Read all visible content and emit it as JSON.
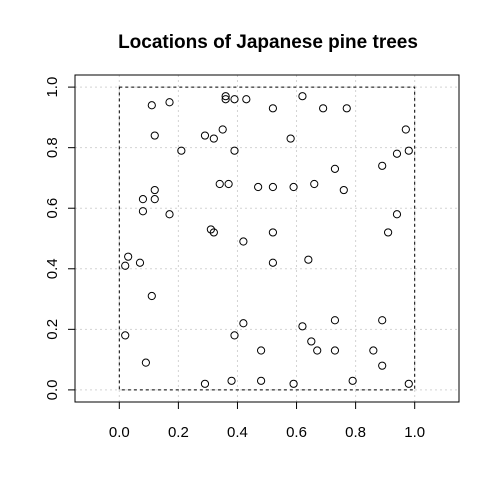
{
  "chart_data": {
    "type": "scatter",
    "title": "Locations of Japanese pine trees",
    "xlabel": "",
    "ylabel": "",
    "xlim": [
      -0.15,
      1.15
    ],
    "ylim": [
      -0.04,
      1.04
    ],
    "x_ticks": [
      "0.0",
      "0.2",
      "0.4",
      "0.6",
      "0.8",
      "1.0"
    ],
    "y_ticks": [
      "0.0",
      "0.2",
      "0.4",
      "0.6",
      "0.8",
      "1.0"
    ],
    "grid": true,
    "grid_style": "dotted",
    "window": {
      "xmin": 0,
      "xmax": 1,
      "ymin": 0,
      "ymax": 1,
      "style": "dashed"
    },
    "marker": "open-circle",
    "point_color": "#000000",
    "grid_color": "#d3d3d3",
    "points": [
      {
        "x": 0.09,
        "y": 0.09
      },
      {
        "x": 0.29,
        "y": 0.02
      },
      {
        "x": 0.38,
        "y": 0.03
      },
      {
        "x": 0.39,
        "y": 0.18
      },
      {
        "x": 0.42,
        "y": 0.22
      },
      {
        "x": 0.48,
        "y": 0.03
      },
      {
        "x": 0.48,
        "y": 0.13
      },
      {
        "x": 0.59,
        "y": 0.02
      },
      {
        "x": 0.62,
        "y": 0.21
      },
      {
        "x": 0.65,
        "y": 0.16
      },
      {
        "x": 0.67,
        "y": 0.13
      },
      {
        "x": 0.73,
        "y": 0.13
      },
      {
        "x": 0.73,
        "y": 0.23
      },
      {
        "x": 0.79,
        "y": 0.03
      },
      {
        "x": 0.86,
        "y": 0.13
      },
      {
        "x": 0.89,
        "y": 0.08
      },
      {
        "x": 0.89,
        "y": 0.23
      },
      {
        "x": 0.98,
        "y": 0.02
      },
      {
        "x": 0.02,
        "y": 0.18
      },
      {
        "x": 0.11,
        "y": 0.31
      },
      {
        "x": 0.02,
        "y": 0.41
      },
      {
        "x": 0.03,
        "y": 0.44
      },
      {
        "x": 0.07,
        "y": 0.42
      },
      {
        "x": 0.08,
        "y": 0.59
      },
      {
        "x": 0.08,
        "y": 0.63
      },
      {
        "x": 0.12,
        "y": 0.63
      },
      {
        "x": 0.12,
        "y": 0.66
      },
      {
        "x": 0.17,
        "y": 0.58
      },
      {
        "x": 0.31,
        "y": 0.53
      },
      {
        "x": 0.32,
        "y": 0.52
      },
      {
        "x": 0.42,
        "y": 0.49
      },
      {
        "x": 0.52,
        "y": 0.52
      },
      {
        "x": 0.52,
        "y": 0.42
      },
      {
        "x": 0.64,
        "y": 0.43
      },
      {
        "x": 0.91,
        "y": 0.52
      },
      {
        "x": 0.94,
        "y": 0.58
      },
      {
        "x": 0.34,
        "y": 0.68
      },
      {
        "x": 0.37,
        "y": 0.68
      },
      {
        "x": 0.47,
        "y": 0.67
      },
      {
        "x": 0.52,
        "y": 0.67
      },
      {
        "x": 0.59,
        "y": 0.67
      },
      {
        "x": 0.66,
        "y": 0.68
      },
      {
        "x": 0.73,
        "y": 0.73
      },
      {
        "x": 0.76,
        "y": 0.66
      },
      {
        "x": 0.89,
        "y": 0.74
      },
      {
        "x": 0.94,
        "y": 0.78
      },
      {
        "x": 0.98,
        "y": 0.79
      },
      {
        "x": 0.97,
        "y": 0.86
      },
      {
        "x": 0.12,
        "y": 0.84
      },
      {
        "x": 0.21,
        "y": 0.79
      },
      {
        "x": 0.29,
        "y": 0.84
      },
      {
        "x": 0.32,
        "y": 0.83
      },
      {
        "x": 0.35,
        "y": 0.86
      },
      {
        "x": 0.39,
        "y": 0.79
      },
      {
        "x": 0.58,
        "y": 0.83
      },
      {
        "x": 0.11,
        "y": 0.94
      },
      {
        "x": 0.17,
        "y": 0.95
      },
      {
        "x": 0.36,
        "y": 0.96
      },
      {
        "x": 0.36,
        "y": 0.97
      },
      {
        "x": 0.39,
        "y": 0.96
      },
      {
        "x": 0.43,
        "y": 0.96
      },
      {
        "x": 0.52,
        "y": 0.93
      },
      {
        "x": 0.62,
        "y": 0.97
      },
      {
        "x": 0.69,
        "y": 0.93
      },
      {
        "x": 0.77,
        "y": 0.93
      }
    ]
  }
}
